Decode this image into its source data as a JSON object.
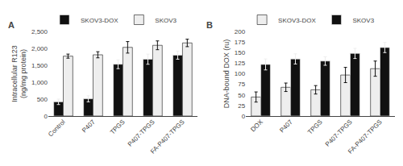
{
  "chart_data": [
    {
      "type": "bar",
      "categories": [
        "Control",
        "P407",
        "TPGS",
        "P407-TPGS",
        "FA-P407-TPGS"
      ],
      "series": [
        {
          "name": "SKOV3-DOX",
          "color": "#111111",
          "values": [
            420,
            510,
            1530,
            1680,
            1800
          ],
          "errors": [
            80,
            90,
            130,
            150,
            120
          ]
        },
        {
          "name": "SKOV3",
          "color": "#eeeeee",
          "values": [
            1770,
            1810,
            2030,
            2090,
            2160
          ],
          "errors": [
            60,
            90,
            170,
            130,
            110
          ]
        }
      ],
      "ylabel": "Intracellular R123\n(ng/mg protein)",
      "ylim": [
        0,
        2500
      ],
      "yticks": [
        0,
        500,
        {
          "value": 1000,
          "label": "1,000"
        },
        {
          "value": 1500,
          "label": "1,500"
        },
        {
          "value": 2000,
          "label": "2,000"
        },
        {
          "value": 2500,
          "label": "2,500"
        }
      ],
      "legend": "upper left",
      "grid": false,
      "annotations": [
        "A"
      ]
    },
    {
      "type": "bar",
      "categories": [
        "DOX",
        "P407",
        "TPGS",
        "P407-TPGS",
        "FA-P407-TPGS"
      ],
      "series": [
        {
          "name": "SKOV3-DOX",
          "color": "#eeeeee",
          "values": [
            45,
            68,
            62,
            97,
            112
          ],
          "errors": [
            12,
            10,
            10,
            18,
            18
          ]
        },
        {
          "name": "SKOV3",
          "color": "#111111",
          "values": [
            122,
            135,
            130,
            148,
            162
          ],
          "errors": [
            13,
            12,
            10,
            12,
            12
          ]
        }
      ],
      "ylabel": "DNA-bound DOX (ru)",
      "ylim": [
        0,
        200
      ],
      "yticks": [
        0,
        25,
        50,
        75,
        100,
        125,
        150,
        175,
        200
      ],
      "legend": "upper left",
      "grid": false,
      "annotations": [
        "B"
      ]
    }
  ]
}
